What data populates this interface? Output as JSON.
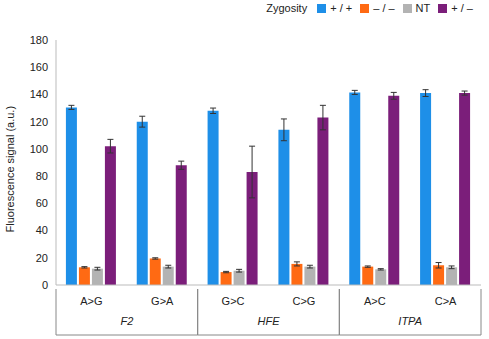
{
  "chart_data": {
    "type": "bar",
    "y_label": "Fluorescence signal (a.u.)",
    "legend_title": "Zygosity",
    "legend": "top-right",
    "categories": [
      "A>G",
      "G>A",
      "G>C",
      "C>G",
      "A>C",
      "C>A"
    ],
    "groups": [
      {
        "label": "F2",
        "size": 2
      },
      {
        "label": "HFE",
        "size": 2
      },
      {
        "label": "ITPA",
        "size": 2
      }
    ],
    "series": [
      {
        "name": "+ / +",
        "color": "#1E8FE8",
        "values": [
          130.5,
          120,
          128,
          114,
          141.5,
          141
        ],
        "errors": [
          1.5,
          4,
          2,
          8,
          1.5,
          2.5
        ]
      },
      {
        "name": "– / –",
        "color": "#FF6A13",
        "values": [
          13,
          19.5,
          9.5,
          15.5,
          13.5,
          14.5
        ],
        "errors": [
          0.5,
          0.5,
          0.5,
          1.5,
          0.5,
          2
        ]
      },
      {
        "name": "NT",
        "color": "#B3B3B3",
        "values": [
          12,
          13.5,
          10.5,
          13.5,
          11.5,
          13
        ],
        "errors": [
          1,
          1,
          1,
          1,
          0.5,
          1
        ]
      },
      {
        "name": "+ / –",
        "color": "#7B1E7A",
        "values": [
          102,
          88,
          83,
          123,
          139,
          141
        ],
        "errors": [
          5,
          3,
          19,
          9,
          2.5,
          1.5
        ]
      }
    ],
    "ylim": [
      0,
      180
    ],
    "yticks": [
      0,
      20,
      40,
      60,
      80,
      100,
      120,
      140,
      160,
      180
    ],
    "grid": false
  }
}
